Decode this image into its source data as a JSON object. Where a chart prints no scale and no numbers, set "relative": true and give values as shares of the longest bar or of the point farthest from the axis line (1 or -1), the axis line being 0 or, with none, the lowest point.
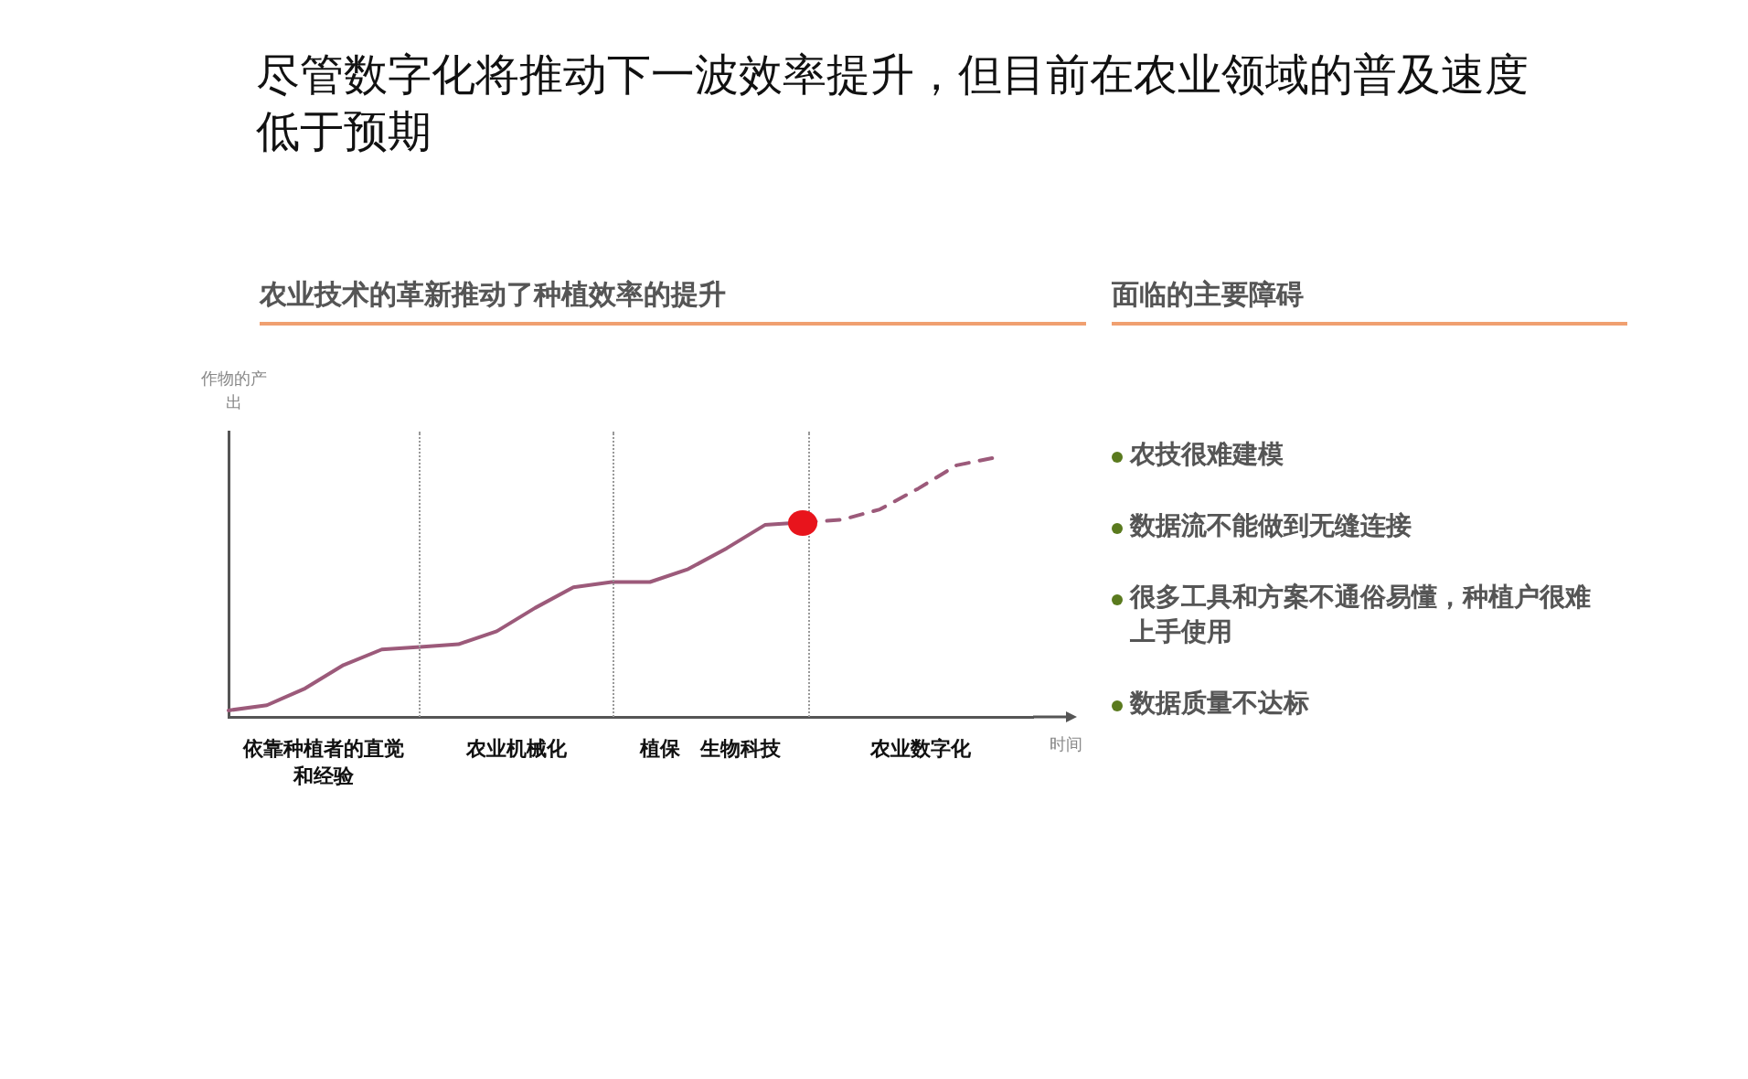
{
  "chart_data": [
    {
      "type": "line",
      "title": "尽管数字化将推动下一波效率提升，但目前在农业领域的普及速度低于预期",
      "subtitle": "农业技术的革新推动了种植效率的提升",
      "xlabel": "时间",
      "ylabel": "作物的产出",
      "relative": true,
      "grid": false,
      "legend": false,
      "marker": "none",
      "categories": [
        null,
        null,
        null,
        null,
        null,
        null,
        null,
        null,
        null,
        null,
        null,
        null,
        null,
        null,
        null,
        null,
        null,
        null,
        null,
        null,
        null,
        null
      ],
      "series": [
        {
          "color": "#9c5a7a",
          "line_style": "solid",
          "values": [
            0.025,
            0.045,
            0.11,
            0.2,
            0.26,
            0.27,
            0.28,
            0.33,
            0.42,
            0.5,
            0.52,
            0.52,
            0.57,
            0.65,
            0.74,
            0.75,
            null,
            null,
            null,
            null,
            null,
            null
          ]
        },
        {
          "color": "#9c5a7a",
          "line_style": "dashed",
          "values": [
            null,
            null,
            null,
            null,
            null,
            null,
            null,
            null,
            null,
            null,
            null,
            null,
            null,
            null,
            null,
            0.75,
            0.76,
            0.8,
            0.88,
            0.97,
            1,
            null
          ]
        }
      ],
      "annotations": [
        "依靠种植者的直觉和经验",
        "农业机械化",
        "植保　生物科技",
        "农业数字化"
      ]
    },
    {
      "type": "other",
      "title": "面临的主要障碍",
      "annotations": [
        "农技很难建模",
        "数据流不能做到无缝连接",
        "很多工具和方案不通俗易懂，种植户很难上手使用",
        "数据质量不达标"
      ]
    }
  ]
}
